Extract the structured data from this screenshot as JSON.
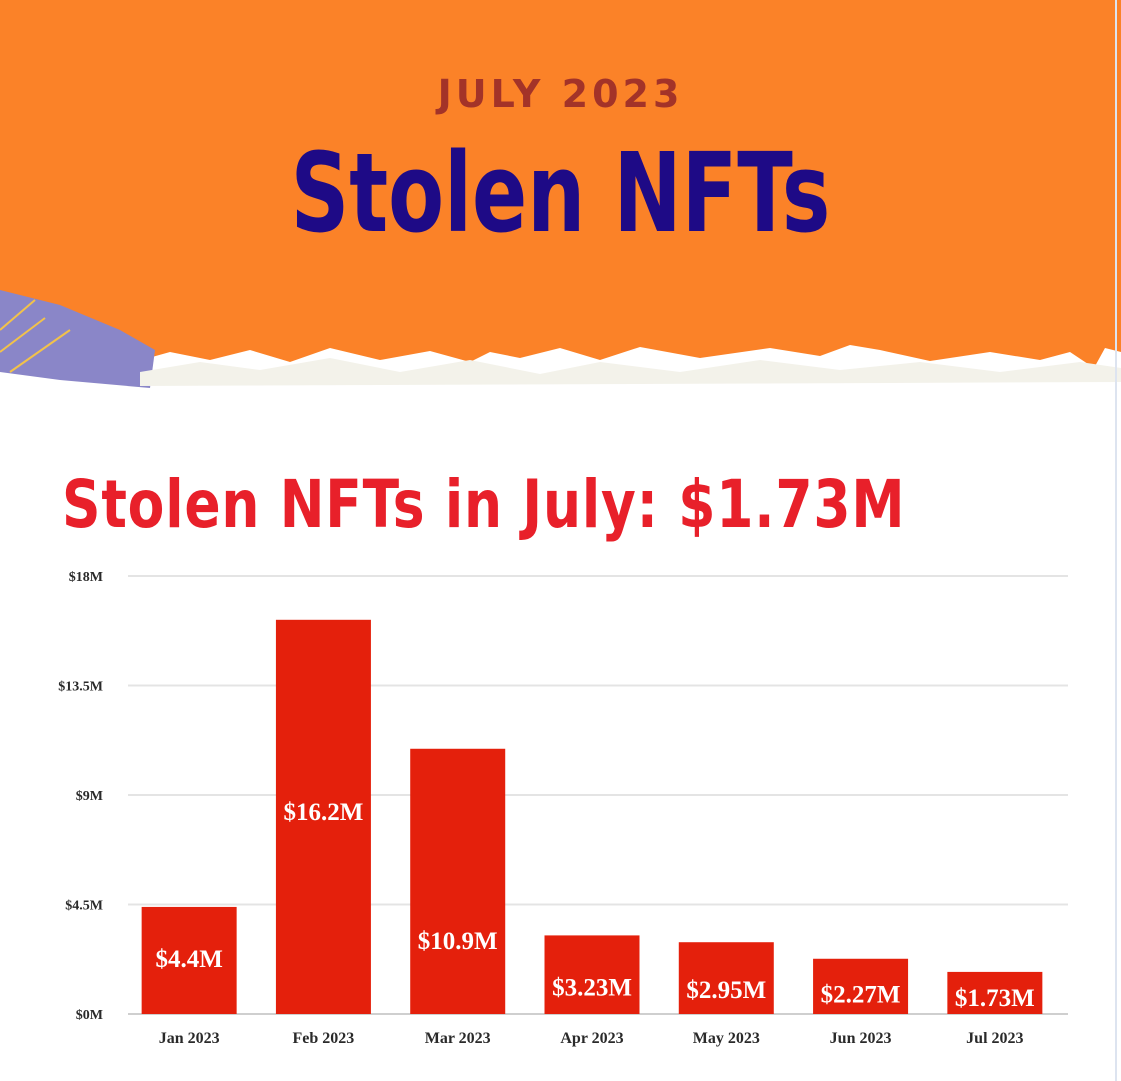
{
  "header": {
    "kicker": "JULY 2023",
    "title": "Stolen NFTs"
  },
  "colors": {
    "banner": "#fb8228",
    "title_navy": "#1e0a86",
    "kicker": "#a33328",
    "bar": "#e4200c",
    "chart_title": "#e8202a"
  },
  "chart_data": {
    "type": "bar",
    "title": "Stolen NFTs in July: $1.73M",
    "categories": [
      "Jan 2023",
      "Feb 2023",
      "Mar 2023",
      "Apr 2023",
      "May 2023",
      "Jun 2023",
      "Jul 2023"
    ],
    "values": [
      4.4,
      16.2,
      10.9,
      3.23,
      2.95,
      2.27,
      1.73
    ],
    "value_labels": [
      "$4.4M",
      "$16.2M",
      "$10.9M",
      "$3.23M",
      "$2.95M",
      "$2.27M",
      "$1.73M"
    ],
    "yticks": [
      0,
      4.5,
      9,
      13.5,
      18
    ],
    "ytick_labels": [
      "$0M",
      "$4.5M",
      "$9M",
      "$13.5M",
      "$18M"
    ],
    "ylim": [
      0,
      18
    ],
    "xlabel": "",
    "ylabel": "",
    "grid": true,
    "legend": "none"
  }
}
